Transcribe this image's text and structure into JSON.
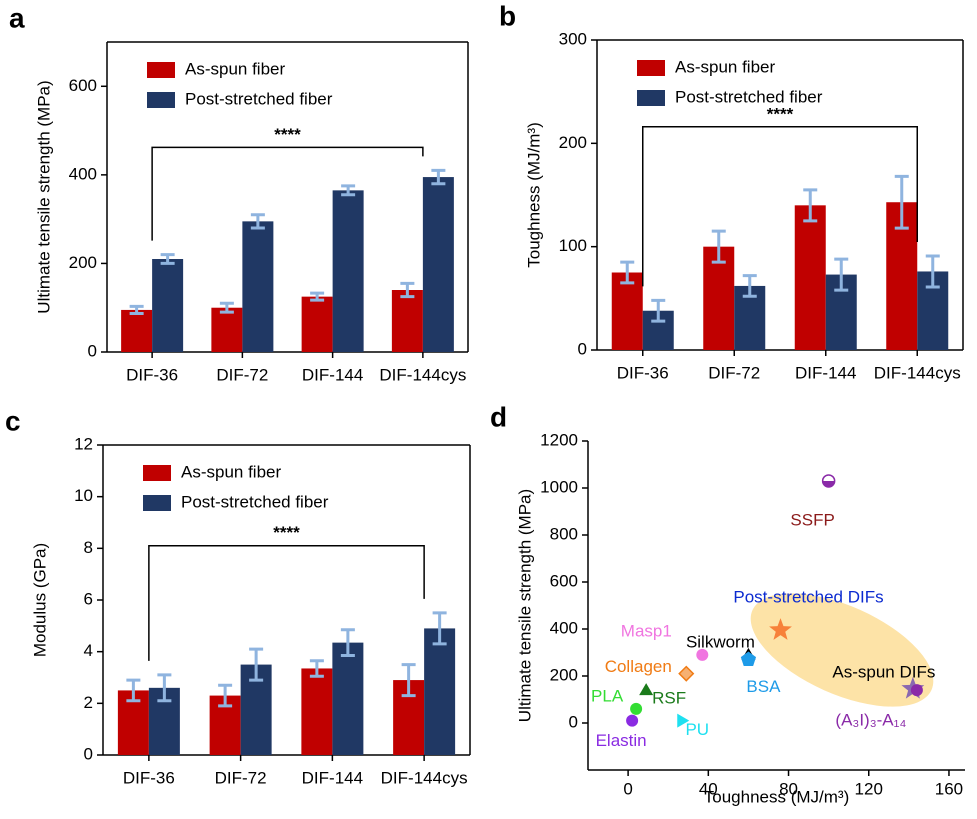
{
  "chart_data": [
    {
      "type": "bar",
      "label": "a",
      "ylabel": "Ultimate tensile strength (MPa)",
      "annotation": "****",
      "categories": [
        "DIF-36",
        "DIF-72",
        "DIF-144",
        "DIF-144cys"
      ],
      "series": [
        {
          "name": "As-spun fiber",
          "color": "#c00000",
          "values": [
            95,
            100,
            125,
            140
          ],
          "errors": [
            8,
            10,
            8,
            15
          ]
        },
        {
          "name": "Post-stretched fiber",
          "color": "#203864",
          "values": [
            210,
            295,
            365,
            395
          ],
          "errors": [
            10,
            15,
            10,
            15
          ]
        }
      ],
      "ylim": [
        0,
        700
      ],
      "yticks": [
        0,
        200,
        400,
        600
      ]
    },
    {
      "type": "bar",
      "label": "b",
      "ylabel": "Toughness (MJ/m³)",
      "annotation": "****",
      "categories": [
        "DIF-36",
        "DIF-72",
        "DIF-144",
        "DIF-144cys"
      ],
      "series": [
        {
          "name": "As-spun fiber",
          "color": "#c00000",
          "values": [
            75,
            100,
            140,
            143
          ],
          "errors": [
            10,
            15,
            15,
            25
          ]
        },
        {
          "name": "Post-stretched fiber",
          "color": "#203864",
          "values": [
            38,
            62,
            73,
            76
          ],
          "errors": [
            10,
            10,
            15,
            15
          ]
        }
      ],
      "ylim": [
        0,
        300
      ],
      "yticks": [
        0,
        100,
        200,
        300
      ]
    },
    {
      "type": "bar",
      "label": "c",
      "ylabel": "Modulus (GPa)",
      "annotation": "****",
      "categories": [
        "DIF-36",
        "DIF-72",
        "DIF-144",
        "DIF-144cys"
      ],
      "series": [
        {
          "name": "As-spun fiber",
          "color": "#c00000",
          "values": [
            2.5,
            2.3,
            3.35,
            2.9
          ],
          "errors": [
            0.4,
            0.4,
            0.3,
            0.6
          ]
        },
        {
          "name": "Post-stretched fiber",
          "color": "#203864",
          "values": [
            2.6,
            3.5,
            4.35,
            4.9
          ],
          "errors": [
            0.5,
            0.6,
            0.5,
            0.6
          ]
        }
      ],
      "ylim": [
        0,
        12
      ],
      "yticks": [
        0,
        2,
        4,
        6,
        8,
        10,
        12
      ]
    },
    {
      "type": "scatter",
      "label": "d",
      "xlabel": "Toughness (MJ/m³)",
      "ylabel": "Ultimate tensile strength (MPa)",
      "series": [
        {
          "name": "SSFP",
          "color": "#8b1a1a",
          "marker": "halfcircle",
          "x": [
            100
          ],
          "values": [
            1030
          ]
        },
        {
          "name": "Post-stretched DIFs",
          "color": "#0b2ad0",
          "marker": "star",
          "x": [
            76
          ],
          "values": [
            395
          ]
        },
        {
          "name": "Masp1",
          "color": "#f075e0",
          "marker": "circle",
          "x": [
            37
          ],
          "values": [
            290
          ]
        },
        {
          "name": "Silkworm",
          "color": "#000000",
          "marker": "triangle",
          "x": [
            60
          ],
          "values": [
            290
          ]
        },
        {
          "name": "BSA",
          "color": "#1e9be8",
          "marker": "pentagon",
          "x": [
            60
          ],
          "values": [
            270
          ]
        },
        {
          "name": "Collagen",
          "color": "#f07b14",
          "marker": "diamond",
          "x": [
            29
          ],
          "values": [
            210
          ]
        },
        {
          "name": "RSF",
          "color": "#1a7a1a",
          "marker": "triangle",
          "x": [
            9
          ],
          "values": [
            140
          ]
        },
        {
          "name": "PLA",
          "color": "#33dd33",
          "marker": "circle",
          "x": [
            4
          ],
          "values": [
            60
          ]
        },
        {
          "name": "Elastin",
          "color": "#8a2be2",
          "marker": "circle",
          "x": [
            2
          ],
          "values": [
            10
          ]
        },
        {
          "name": "PU",
          "color": "#1ee0f0",
          "marker": "triangleright",
          "x": [
            27
          ],
          "values": [
            10
          ]
        },
        {
          "name": "As-spun DIFs",
          "color": "#000000",
          "marker": "star",
          "x": [
            142
          ],
          "values": [
            145
          ]
        },
        {
          "name": "(A₃I)₃-A₁₄",
          "color": "#8a2aa8",
          "marker": "circle",
          "x": [
            144
          ],
          "values": [
            140
          ]
        }
      ],
      "xlim": [
        -20,
        168
      ],
      "xticks": [
        0,
        40,
        80,
        120,
        160
      ],
      "ylim": [
        -200,
        1200
      ],
      "yticks": [
        0,
        200,
        400,
        600,
        800,
        1000,
        1200
      ]
    }
  ]
}
